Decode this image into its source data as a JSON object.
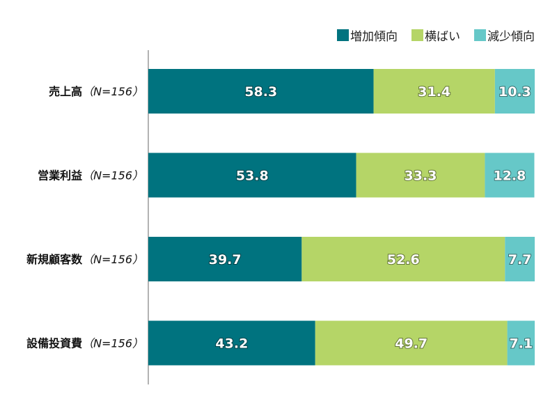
{
  "chart_data": {
    "type": "bar",
    "orientation": "horizontal",
    "stacked": true,
    "title": "",
    "xlabel": "",
    "ylabel": "",
    "xlim": [
      0,
      100
    ],
    "grid": false,
    "legend_position": "top-right",
    "categories": [
      "売上高",
      "営業利益",
      "新規顧客数",
      "設備投資費"
    ],
    "category_sample": "（N=156）",
    "series": [
      {
        "name": "増加傾向",
        "color": "#00737F",
        "values": [
          58.3,
          53.8,
          39.7,
          43.2
        ]
      },
      {
        "name": "横ばい",
        "color": "#B5D567",
        "values": [
          31.4,
          33.3,
          52.6,
          49.7
        ]
      },
      {
        "name": "減少傾向",
        "color": "#66C8C8",
        "values": [
          10.3,
          12.8,
          7.7,
          7.1
        ]
      }
    ]
  }
}
